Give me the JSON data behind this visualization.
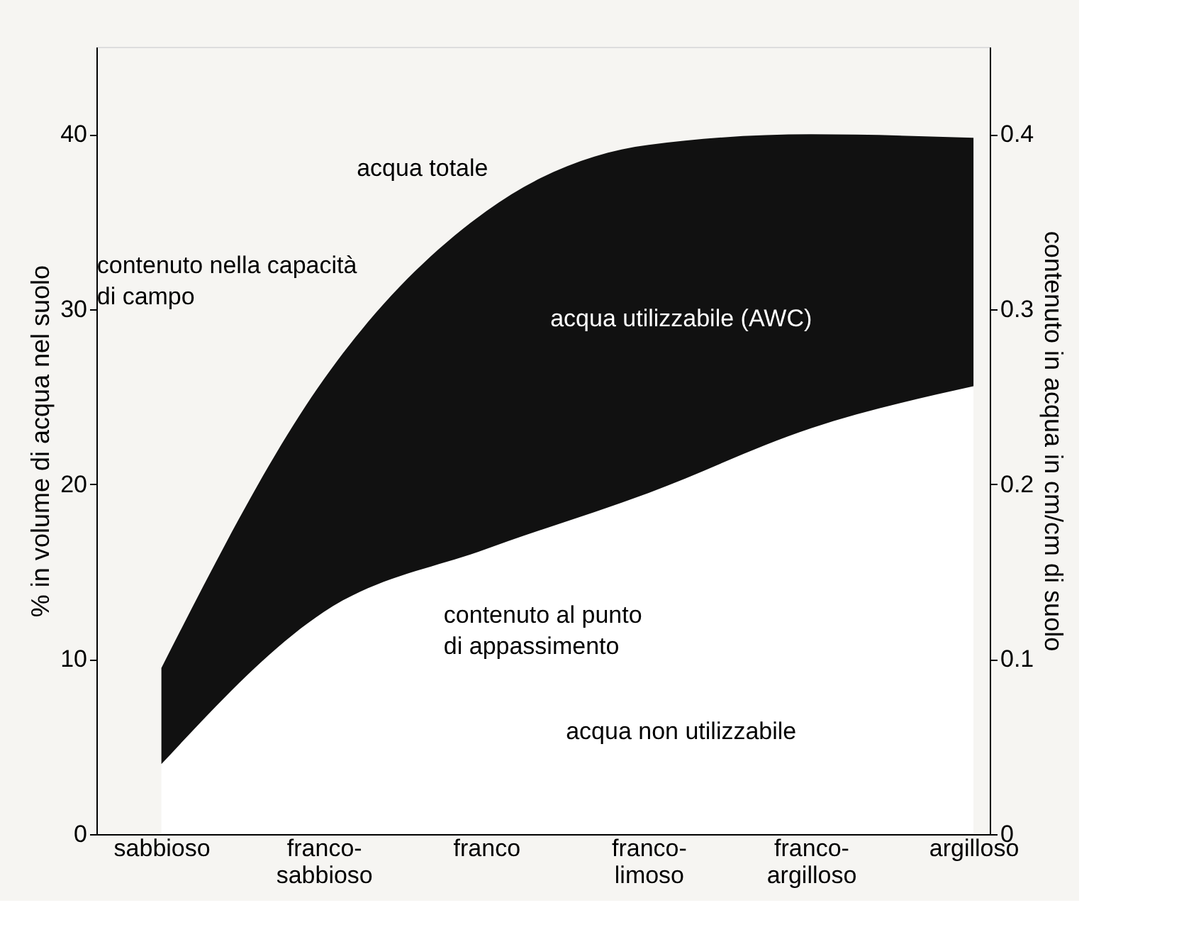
{
  "chart_data": {
    "type": "area",
    "stacked": true,
    "categories": [
      "sabbioso",
      "franco-sabbioso",
      "franco",
      "franco-limoso",
      "franco-argilloso",
      "argilloso"
    ],
    "series": [
      {
        "name": "acqua non utilizzabile",
        "color": "#ffffff",
        "values": [
          4.0,
          12.7,
          16.3,
          19.5,
          23.2,
          25.6
        ]
      },
      {
        "name": "acqua utilizzabile (AWC)",
        "color": "#111111",
        "values": [
          5.5,
          13.3,
          19.3,
          19.9,
          16.8,
          14.2
        ]
      }
    ],
    "ylabel": "% in volume di acqua nel suolo",
    "y2label": "contenuto in acqua in cm/cm di suolo",
    "ylim": [
      0,
      45
    ],
    "yticks": [
      0,
      10,
      20,
      30,
      40
    ],
    "y2lim": [
      0,
      0.45
    ],
    "y2ticks": [
      0,
      0.1,
      0.2,
      0.3,
      0.4
    ],
    "grid": false,
    "annotations": [
      {
        "text": "acqua totale",
        "x": "franco",
        "y": 35.6
      },
      {
        "text": "contenuto nella capacità di campo",
        "x": "franco-sabbioso",
        "y": 26
      },
      {
        "text": "contenuto al punto di appassimento",
        "x": "franco",
        "y": 16.3
      }
    ]
  }
}
